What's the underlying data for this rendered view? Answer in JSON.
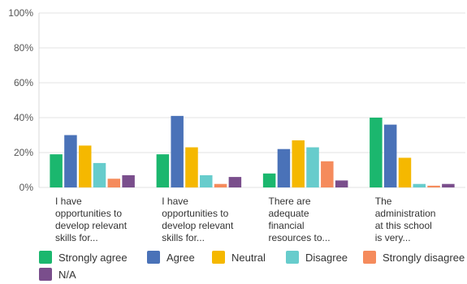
{
  "chart_data": {
    "type": "bar",
    "categories": [
      [
        "I have",
        "opportunities to",
        "develop relevant",
        "skills for..."
      ],
      [
        "I have",
        "opportunities to",
        "develop relevant",
        "skills for..."
      ],
      [
        "There are",
        "adequate",
        "financial",
        "resources to..."
      ],
      [
        "The",
        "administration",
        "at this school",
        "is very..."
      ]
    ],
    "series": [
      {
        "name": "Strongly agree",
        "color": "#1bb76e",
        "values": [
          19,
          19,
          8,
          40
        ]
      },
      {
        "name": "Agree",
        "color": "#4a72b8",
        "values": [
          30,
          41,
          22,
          36
        ]
      },
      {
        "name": "Neutral",
        "color": "#f5b800",
        "values": [
          24,
          23,
          27,
          17
        ]
      },
      {
        "name": "Disagree",
        "color": "#67cccc",
        "values": [
          14,
          7,
          23,
          2
        ]
      },
      {
        "name": "Strongly disagree",
        "color": "#f58b5c",
        "values": [
          5,
          2,
          15,
          1
        ]
      },
      {
        "name": "N/A",
        "color": "#7a4e8c",
        "values": [
          7,
          6,
          4,
          2
        ]
      }
    ],
    "ylim": [
      0,
      100
    ],
    "yticks": [
      "0%",
      "20%",
      "40%",
      "60%",
      "80%",
      "100%"
    ],
    "grid": true,
    "legend_position": "bottom"
  }
}
